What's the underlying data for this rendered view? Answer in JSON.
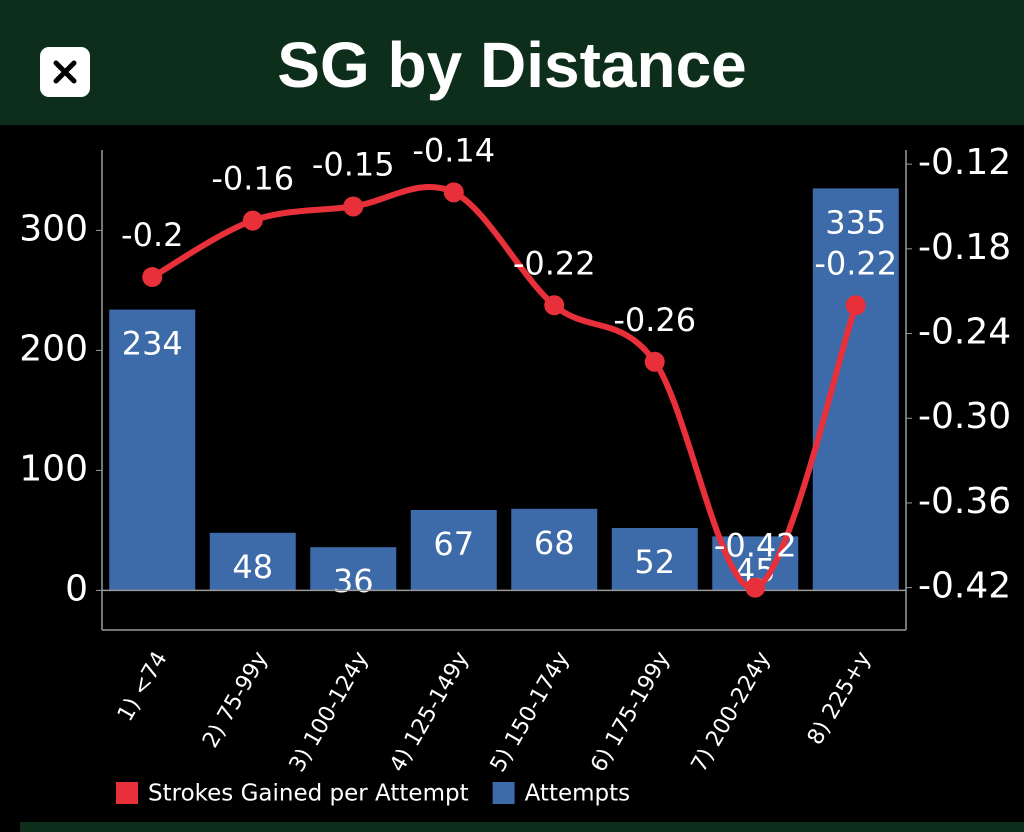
{
  "header": {
    "title": "SG by Distance"
  },
  "chart_data": {
    "type": "combo",
    "categories": [
      "1) <74",
      "2) 75-99y",
      "3) 100-124y",
      "4) 125-149y",
      "5) 150-174y",
      "6) 175-199y",
      "7) 200-224y",
      "8) 225+y"
    ],
    "series": [
      {
        "name": "Strokes Gained per Attempt",
        "type": "line",
        "axis": "y2",
        "color": "#e8303a",
        "values": [
          -0.2,
          -0.16,
          -0.15,
          -0.14,
          -0.22,
          -0.26,
          -0.42,
          -0.22
        ]
      },
      {
        "name": "Attempts",
        "type": "bar",
        "color": "#3d6aa8",
        "values": [
          234,
          48,
          36,
          67,
          68,
          52,
          45,
          335
        ]
      }
    ],
    "ylim": [
      -33,
      367
    ],
    "yticks": [
      0,
      100,
      200,
      300
    ],
    "y2lim": [
      -0.45,
      -0.11
    ],
    "y2ticks": [
      -0.42,
      -0.36,
      {
        "value": -0.3,
        "label": "-0.30"
      },
      -0.24,
      -0.18,
      -0.12
    ]
  }
}
